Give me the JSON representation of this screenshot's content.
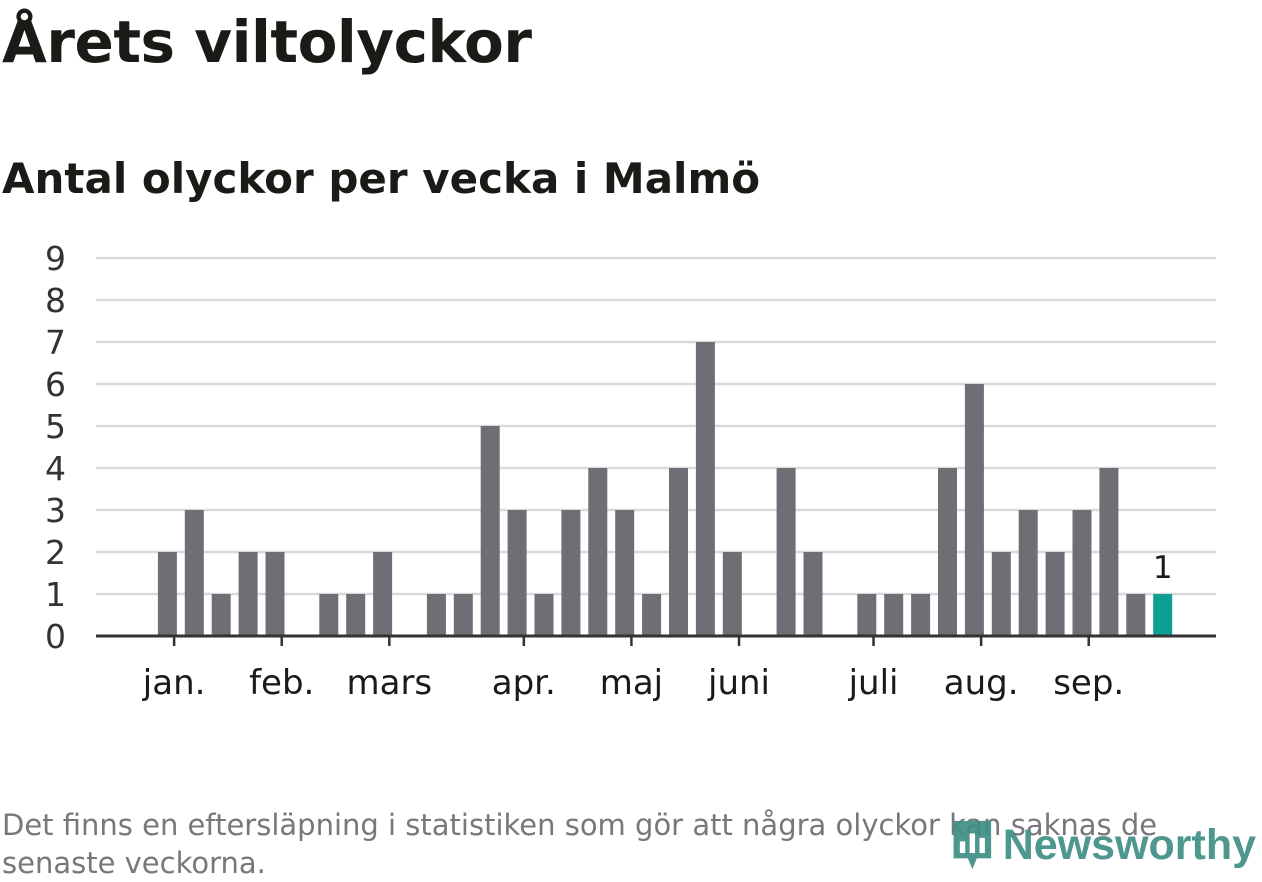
{
  "header": {
    "title": "Årets viltolyckor",
    "subtitle": "Antal olyckor per vecka i Malmö"
  },
  "footnote": "Det finns en eftersläpning i statistiken som gör att några olyckor kan saknas de senaste veckorna.",
  "logo": {
    "text": "Newsworthy",
    "icon": "bar-chart-pin-icon"
  },
  "colors": {
    "bar": "#6f6e74",
    "highlight": "#0d9e94",
    "grid": "#d9d9d9",
    "axis": "#333333",
    "logo": "#3f8f86"
  },
  "chart_data": {
    "type": "bar",
    "title": "Antal olyckor per vecka i Malmö",
    "xlabel": "",
    "ylabel": "",
    "ylim": [
      0,
      9
    ],
    "yticks": [
      0,
      1,
      2,
      3,
      4,
      5,
      6,
      7,
      8,
      9
    ],
    "grid": true,
    "x": [
      1,
      2,
      3,
      4,
      5,
      6,
      7,
      8,
      9,
      10,
      11,
      12,
      13,
      14,
      15,
      16,
      17,
      18,
      19,
      20,
      21,
      22,
      23,
      24,
      25,
      26,
      27,
      28,
      29,
      30,
      31,
      32,
      33,
      34,
      35,
      36,
      37,
      38,
      39,
      40,
      41
    ],
    "values": [
      0,
      2,
      3,
      1,
      2,
      2,
      0,
      1,
      1,
      2,
      0,
      1,
      1,
      5,
      3,
      1,
      3,
      4,
      3,
      1,
      4,
      7,
      2,
      0,
      4,
      2,
      0,
      1,
      1,
      1,
      4,
      6,
      2,
      3,
      2,
      3,
      4,
      1,
      1,
      0,
      0
    ],
    "month_labels": [
      {
        "label": "jan.",
        "week": 2.25
      },
      {
        "label": "feb.",
        "week": 6.25
      },
      {
        "label": "mars",
        "week": 10.25
      },
      {
        "label": "apr.",
        "week": 15.25
      },
      {
        "label": "maj",
        "week": 19.25
      },
      {
        "label": "juni",
        "week": 23.25
      },
      {
        "label": "juli",
        "week": 28.25
      },
      {
        "label": "aug.",
        "week": 32.25
      },
      {
        "label": "sep.",
        "week": 36.25
      }
    ],
    "highlight": {
      "week": 39,
      "value": 1,
      "label": "1"
    }
  }
}
